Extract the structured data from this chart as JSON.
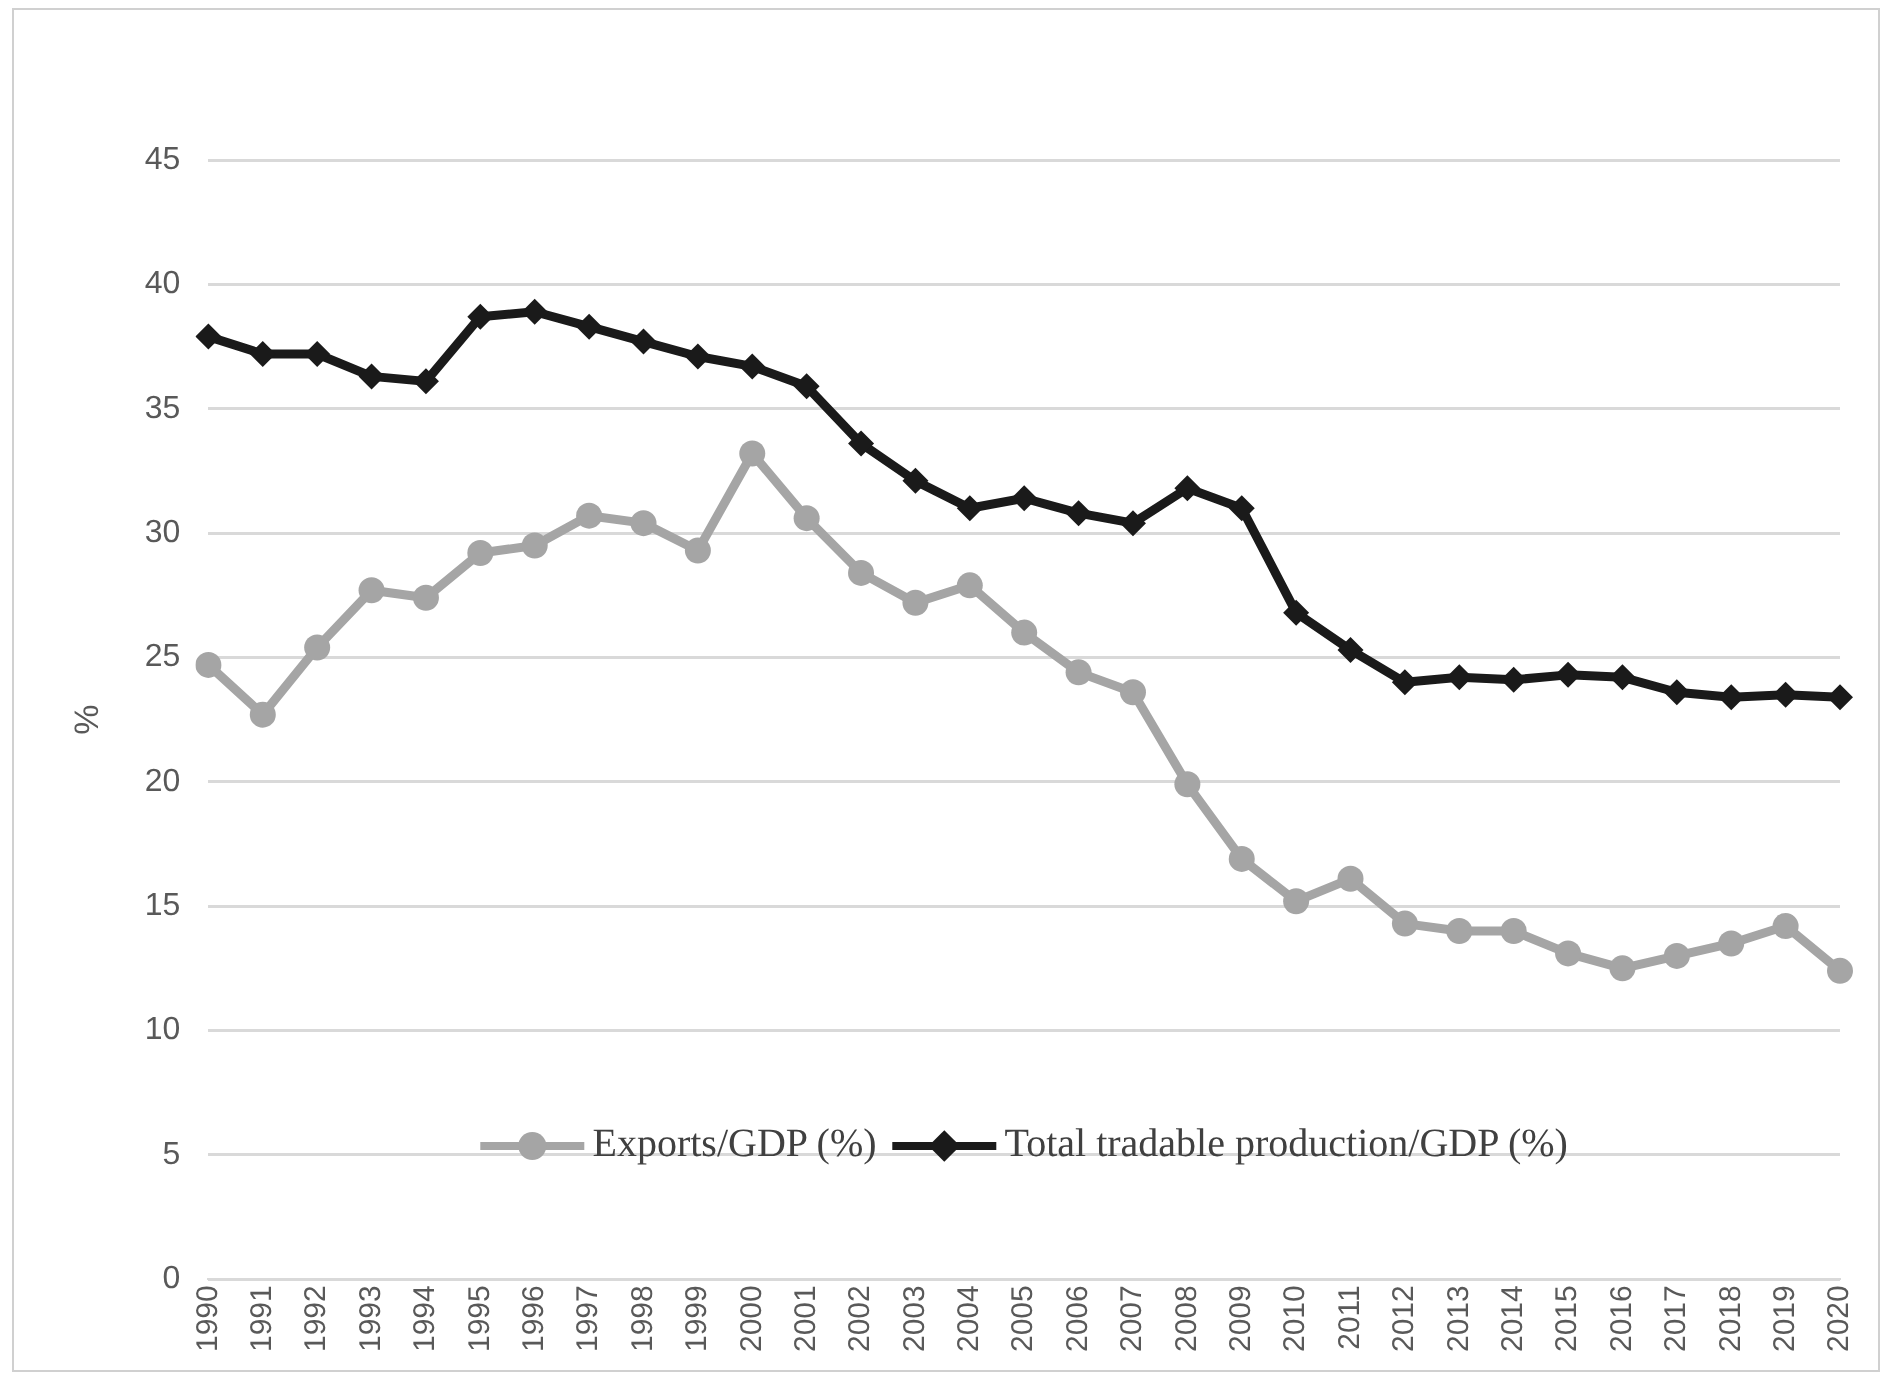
{
  "chart_data": {
    "type": "line",
    "ylabel": "%",
    "categories": [
      "1990",
      "1991",
      "1992",
      "1993",
      "1994",
      "1995",
      "1996",
      "1997",
      "1998",
      "1999",
      "2000",
      "2001",
      "2002",
      "2003",
      "2004",
      "2005",
      "2006",
      "2007",
      "2008",
      "2009",
      "2010",
      "2011",
      "2012",
      "2013",
      "2014",
      "2015",
      "2016",
      "2017",
      "2018",
      "2019",
      "2020"
    ],
    "series": [
      {
        "name": "Exports/GDP (%)",
        "color": "#a5a5a5",
        "marker": "circle",
        "values": [
          24.7,
          22.7,
          25.4,
          27.7,
          27.4,
          29.2,
          29.5,
          30.7,
          30.4,
          29.3,
          33.2,
          30.6,
          28.4,
          27.2,
          27.9,
          26.0,
          24.4,
          23.6,
          19.9,
          16.9,
          15.2,
          16.1,
          14.3,
          14.0,
          14.0,
          13.1,
          12.5,
          13.0,
          13.5,
          14.2,
          12.4
        ]
      },
      {
        "name": "Total tradable production/GDP (%)",
        "color": "#1a1a1a",
        "marker": "diamond",
        "values": [
          37.9,
          37.2,
          37.2,
          36.3,
          36.1,
          38.7,
          38.9,
          38.3,
          37.7,
          37.1,
          36.7,
          35.9,
          33.6,
          32.1,
          31.0,
          31.4,
          30.8,
          30.4,
          31.8,
          31.0,
          26.8,
          25.3,
          24.0,
          24.2,
          24.1,
          24.3,
          24.2,
          23.6,
          23.4,
          23.5,
          23.4
        ]
      }
    ],
    "ylim": [
      0,
      45
    ],
    "yticks": [
      0,
      5,
      10,
      15,
      20,
      25,
      30,
      35,
      40,
      45
    ],
    "grid": "y",
    "legend": "bottom"
  }
}
